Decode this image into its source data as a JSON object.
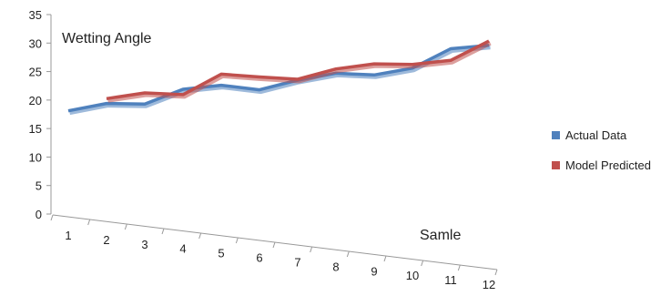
{
  "chart_data": {
    "type": "line",
    "title": "Wetting Angle",
    "xlabel": "Samle",
    "ylabel": "",
    "categories": [
      "1",
      "2",
      "3",
      "4",
      "5",
      "6",
      "7",
      "8",
      "9",
      "10",
      "11",
      "12"
    ],
    "y_ticks": [
      "0",
      "5",
      "10",
      "15",
      "20",
      "25",
      "30",
      "35"
    ],
    "ylim": [
      0,
      35
    ],
    "series": [
      {
        "name": "Actual Data",
        "color": "#4f81bd",
        "values": [
          18.1,
          19.4,
          19.3,
          21.9,
          22.6,
          21.8,
          23.5,
          24.7,
          24.4,
          25.6,
          29.0,
          29.6
        ]
      },
      {
        "name": "Model Predicted",
        "color": "#c0504d",
        "values": [
          null,
          20.0,
          21.0,
          20.7,
          24.3,
          23.8,
          23.4,
          25.2,
          26.1,
          26.0,
          26.7,
          30.1
        ]
      }
    ],
    "legend_position": "right",
    "grid": false
  }
}
